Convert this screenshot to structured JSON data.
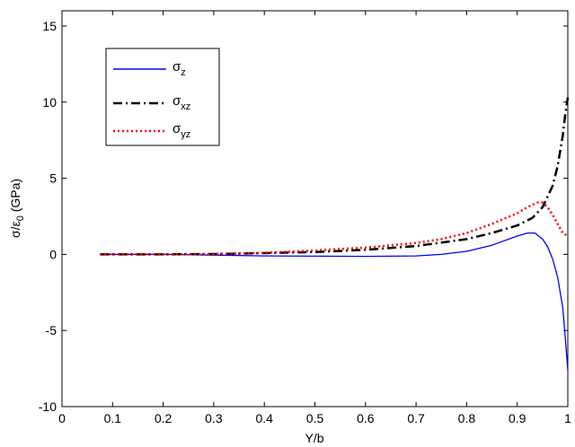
{
  "chart_data": {
    "type": "line",
    "xlabel": "Y/b",
    "ylabel": "σ/ε",
    "ylabel_sub": "0",
    "ylabel_suffix": " (GPa)",
    "xlim": [
      0,
      1
    ],
    "ylim": [
      -10,
      16
    ],
    "x_ticks": [
      0,
      0.1,
      0.2,
      0.3,
      0.4,
      0.5,
      0.6,
      0.7,
      0.8,
      0.9,
      1
    ],
    "x_tick_labels": [
      "0",
      "0.1",
      "0.2",
      "0.3",
      "0.4",
      "0.5",
      "0.6",
      "0.7",
      "0.8",
      "0.9",
      "1"
    ],
    "y_ticks": [
      -10,
      -5,
      0,
      5,
      10,
      15
    ],
    "y_tick_labels": [
      "-10",
      "-5",
      "0",
      "5",
      "10",
      "15"
    ],
    "grid": false,
    "legend_position": "top-left",
    "series": [
      {
        "name": "σz",
        "name_main": "σ",
        "name_sub": "z",
        "color": "#0000ff",
        "style": "solid",
        "x": [
          0.075,
          0.2,
          0.3,
          0.4,
          0.5,
          0.6,
          0.7,
          0.75,
          0.8,
          0.85,
          0.9,
          0.92,
          0.935,
          0.95,
          0.96,
          0.97,
          0.98,
          0.99,
          0.995,
          1.0
        ],
        "y": [
          0,
          0,
          -0.05,
          -0.1,
          -0.12,
          -0.13,
          -0.1,
          0,
          0.2,
          0.6,
          1.2,
          1.4,
          1.4,
          1.0,
          0.5,
          -0.3,
          -1.5,
          -3.5,
          -5.5,
          -7.6
        ]
      },
      {
        "name": "σxz",
        "name_main": "σ",
        "name_sub": "xz",
        "color": "#000000",
        "style": "dashdot",
        "x": [
          0.075,
          0.2,
          0.3,
          0.4,
          0.5,
          0.6,
          0.7,
          0.8,
          0.85,
          0.9,
          0.93,
          0.95,
          0.97,
          0.98,
          0.99,
          0.995,
          1.0
        ],
        "y": [
          0,
          0,
          0.02,
          0.08,
          0.15,
          0.3,
          0.55,
          1.0,
          1.4,
          1.9,
          2.4,
          3.1,
          4.5,
          5.8,
          7.8,
          9.2,
          10.3
        ]
      },
      {
        "name": "σyz",
        "name_main": "σ",
        "name_sub": "yz",
        "color": "#ff0000",
        "style": "dotted",
        "x": [
          0.075,
          0.2,
          0.3,
          0.4,
          0.5,
          0.6,
          0.7,
          0.75,
          0.8,
          0.85,
          0.9,
          0.92,
          0.94,
          0.95,
          0.96,
          0.97,
          0.98,
          0.99,
          1.0
        ],
        "y": [
          0,
          0,
          0.03,
          0.1,
          0.25,
          0.45,
          0.75,
          1.0,
          1.4,
          2.0,
          2.7,
          3.1,
          3.4,
          3.4,
          3.1,
          2.6,
          2.0,
          1.4,
          1.2
        ]
      }
    ]
  }
}
